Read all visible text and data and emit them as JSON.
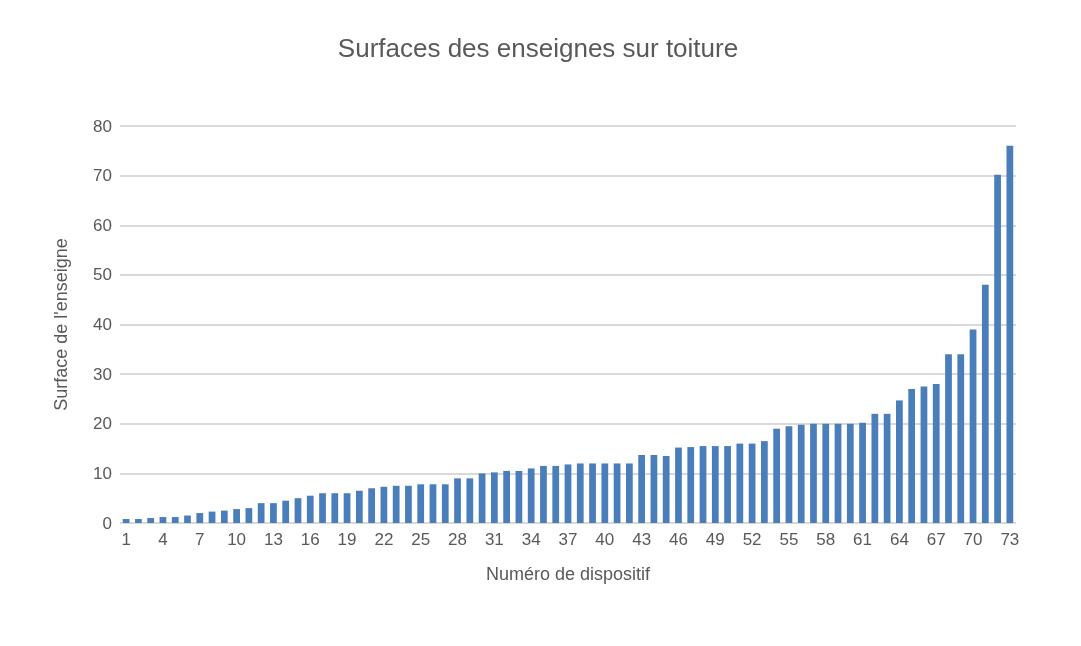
{
  "chart_data": {
    "type": "bar",
    "title": "Surfaces des enseignes sur toiture",
    "xlabel": "Numéro de dispositif",
    "ylabel": "Surface de l'enseigne",
    "categories": [
      "1",
      null,
      null,
      "4",
      null,
      null,
      "7",
      null,
      null,
      "10",
      null,
      null,
      "13",
      null,
      null,
      "16",
      null,
      null,
      "19",
      null,
      null,
      "22",
      null,
      null,
      "25",
      null,
      null,
      "28",
      null,
      null,
      "31",
      null,
      null,
      "34",
      null,
      null,
      "37",
      null,
      null,
      "40",
      null,
      null,
      "43",
      null,
      null,
      "46",
      null,
      null,
      "49",
      null,
      null,
      "52",
      null,
      null,
      "55",
      null,
      null,
      "58",
      null,
      null,
      "61",
      null,
      null,
      "64",
      null,
      null,
      "67",
      null,
      null,
      "70",
      null,
      null,
      "73"
    ],
    "values": [
      0.8,
      0.8,
      1,
      1.2,
      1.2,
      1.5,
      2,
      2.3,
      2.5,
      2.8,
      3,
      4,
      4,
      4.5,
      5,
      5.5,
      6,
      6,
      6,
      6.5,
      7,
      7.3,
      7.5,
      7.5,
      7.8,
      7.8,
      7.8,
      9,
      9,
      10,
      10.2,
      10.5,
      10.5,
      11,
      11.5,
      11.5,
      11.8,
      12,
      12,
      12,
      12,
      12,
      13.7,
      13.7,
      13.5,
      15.2,
      15.3,
      15.5,
      15.5,
      15.5,
      16,
      16,
      16.5,
      19,
      19.5,
      19.8,
      20,
      20,
      20,
      20,
      20.2,
      22,
      22,
      24.7,
      27,
      27.5,
      28,
      34,
      34,
      39,
      48,
      70.2,
      76
    ],
    "color": "#4a7ebb",
    "ylim": [
      0,
      80
    ],
    "yticks": [
      0,
      10,
      20,
      30,
      40,
      50,
      60,
      70,
      80
    ],
    "grid": "y"
  }
}
